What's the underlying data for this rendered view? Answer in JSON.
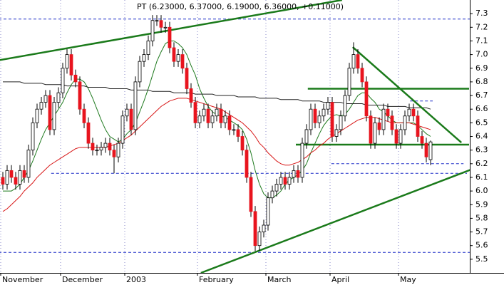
{
  "chart_data": {
    "type": "candlestick",
    "title": "PT (6.23000, 6.37000, 6.19000, 6.36000, +0.11000)",
    "categories": [
      "November",
      null,
      null,
      null,
      null,
      null,
      null,
      null,
      null,
      null,
      null,
      null,
      null,
      null,
      "December",
      null,
      null,
      null,
      null,
      null,
      null,
      null,
      null,
      null,
      null,
      null,
      null,
      null,
      null,
      "2003",
      null,
      null,
      null,
      null,
      null,
      null,
      null,
      null,
      null,
      null,
      null,
      null,
      null,
      null,
      null,
      null,
      "February",
      null,
      null,
      null,
      null,
      null,
      null,
      null,
      null,
      null,
      null,
      null,
      null,
      null,
      null,
      null,
      "March",
      null,
      null,
      null,
      null,
      null,
      null,
      null,
      null,
      null,
      null,
      null,
      null,
      null,
      null,
      "April",
      null,
      null,
      null,
      null,
      null,
      null,
      null,
      null,
      null,
      null,
      null,
      null,
      null,
      null,
      null,
      "May",
      null,
      null,
      null,
      null,
      null,
      null,
      null
    ],
    "ohlc": [
      [
        6.1,
        6.14,
        6.01,
        6.05
      ],
      [
        6.05,
        6.19,
        6.01,
        6.15
      ],
      [
        6.15,
        6.19,
        6.06,
        6.1
      ],
      [
        6.1,
        6.14,
        6.01,
        6.05
      ],
      [
        6.05,
        6.19,
        6.01,
        6.15
      ],
      [
        6.15,
        6.19,
        6.06,
        6.1
      ],
      [
        6.1,
        6.34,
        6.06,
        6.3
      ],
      [
        6.3,
        6.54,
        6.26,
        6.5
      ],
      [
        6.5,
        6.64,
        6.46,
        6.6
      ],
      [
        6.6,
        6.69,
        6.56,
        6.65
      ],
      [
        6.65,
        6.74,
        6.61,
        6.7
      ],
      [
        6.7,
        6.74,
        6.41,
        6.45
      ],
      [
        6.45,
        6.69,
        6.41,
        6.65
      ],
      [
        6.65,
        6.76,
        6.61,
        6.72
      ],
      [
        6.72,
        6.94,
        6.68,
        6.9
      ],
      [
        6.9,
        7.04,
        6.86,
        7.0
      ],
      [
        7.0,
        7.04,
        6.81,
        6.85
      ],
      [
        6.85,
        6.89,
        6.76,
        6.8
      ],
      [
        6.8,
        6.84,
        6.56,
        6.6
      ],
      [
        6.6,
        6.64,
        6.46,
        6.5
      ],
      [
        6.5,
        6.54,
        6.31,
        6.35
      ],
      [
        6.35,
        6.39,
        6.26,
        6.3
      ],
      [
        6.3,
        6.34,
        6.26,
        6.3
      ],
      [
        6.3,
        6.36,
        6.26,
        6.32
      ],
      [
        6.32,
        6.39,
        6.28,
        6.35
      ],
      [
        6.35,
        6.39,
        6.26,
        6.3
      ],
      [
        6.3,
        6.34,
        6.13,
        6.25
      ],
      [
        6.25,
        6.39,
        6.21,
        6.35
      ],
      [
        6.35,
        6.59,
        6.31,
        6.55
      ],
      [
        6.55,
        6.64,
        6.51,
        6.6
      ],
      [
        6.6,
        6.64,
        6.41,
        6.45
      ],
      [
        6.45,
        6.84,
        6.41,
        6.8
      ],
      [
        6.8,
        6.99,
        6.76,
        6.95
      ],
      [
        6.95,
        7.04,
        6.91,
        7.0
      ],
      [
        7.0,
        7.14,
        6.96,
        7.1
      ],
      [
        7.1,
        7.29,
        7.06,
        7.25
      ],
      [
        7.25,
        7.29,
        7.21,
        7.25
      ],
      [
        7.25,
        7.29,
        7.16,
        7.2
      ],
      [
        7.2,
        7.24,
        7.16,
        7.2
      ],
      [
        7.2,
        7.24,
        7.01,
        7.05
      ],
      [
        7.05,
        7.09,
        6.91,
        6.95
      ],
      [
        6.95,
        7.04,
        6.91,
        7.0
      ],
      [
        7.0,
        7.04,
        6.86,
        6.9
      ],
      [
        6.9,
        6.94,
        6.71,
        6.75
      ],
      [
        6.75,
        6.79,
        6.61,
        6.65
      ],
      [
        6.65,
        6.69,
        6.46,
        6.5
      ],
      [
        6.5,
        6.59,
        6.46,
        6.55
      ],
      [
        6.55,
        6.64,
        6.51,
        6.6
      ],
      [
        6.6,
        6.64,
        6.46,
        6.5
      ],
      [
        6.5,
        6.59,
        6.46,
        6.55
      ],
      [
        6.55,
        6.64,
        6.51,
        6.6
      ],
      [
        6.6,
        6.64,
        6.46,
        6.5
      ],
      [
        6.5,
        6.59,
        6.46,
        6.55
      ],
      [
        6.55,
        6.59,
        6.41,
        6.45
      ],
      [
        6.45,
        6.49,
        6.41,
        6.45
      ],
      [
        6.45,
        6.49,
        6.36,
        6.4
      ],
      [
        6.4,
        6.44,
        6.26,
        6.3
      ],
      [
        6.3,
        6.34,
        6.06,
        6.1
      ],
      [
        6.1,
        6.14,
        5.81,
        5.85
      ],
      [
        5.85,
        5.89,
        5.56,
        5.6
      ],
      [
        5.6,
        5.74,
        5.56,
        5.7
      ],
      [
        5.7,
        5.79,
        5.66,
        5.75
      ],
      [
        5.75,
        5.99,
        5.71,
        5.95
      ],
      [
        5.95,
        6.04,
        5.91,
        6.0
      ],
      [
        6.0,
        6.09,
        5.96,
        6.05
      ],
      [
        6.05,
        6.14,
        6.01,
        6.1
      ],
      [
        6.1,
        6.14,
        6.01,
        6.05
      ],
      [
        6.05,
        6.14,
        6.01,
        6.1
      ],
      [
        6.1,
        6.19,
        6.06,
        6.15
      ],
      [
        6.15,
        6.19,
        6.06,
        6.1
      ],
      [
        6.1,
        6.39,
        6.06,
        6.35
      ],
      [
        6.35,
        6.49,
        6.31,
        6.45
      ],
      [
        6.45,
        6.64,
        6.41,
        6.6
      ],
      [
        6.6,
        6.64,
        6.46,
        6.5
      ],
      [
        6.5,
        6.59,
        6.46,
        6.55
      ],
      [
        6.55,
        6.64,
        6.51,
        6.6
      ],
      [
        6.6,
        6.69,
        6.56,
        6.65
      ],
      [
        6.65,
        6.69,
        6.36,
        6.4
      ],
      [
        6.4,
        6.49,
        6.36,
        6.45
      ],
      [
        6.45,
        6.59,
        6.41,
        6.55
      ],
      [
        6.55,
        6.74,
        6.51,
        6.7
      ],
      [
        6.7,
        6.94,
        6.66,
        6.9
      ],
      [
        6.9,
        7.09,
        6.86,
        7.0
      ],
      [
        7.0,
        7.04,
        6.86,
        6.9
      ],
      [
        6.9,
        6.94,
        6.76,
        6.8
      ],
      [
        6.8,
        6.84,
        6.51,
        6.55
      ],
      [
        6.55,
        6.59,
        6.31,
        6.35
      ],
      [
        6.35,
        6.54,
        6.31,
        6.5
      ],
      [
        6.5,
        6.54,
        6.41,
        6.45
      ],
      [
        6.45,
        6.64,
        6.41,
        6.6
      ],
      [
        6.6,
        6.64,
        6.51,
        6.55
      ],
      [
        6.55,
        6.59,
        6.41,
        6.45
      ],
      [
        6.45,
        6.49,
        6.31,
        6.35
      ],
      [
        6.35,
        6.49,
        6.31,
        6.45
      ],
      [
        6.45,
        6.59,
        6.41,
        6.55
      ],
      [
        6.55,
        6.64,
        6.51,
        6.6
      ],
      [
        6.6,
        6.64,
        6.51,
        6.55
      ],
      [
        6.55,
        6.59,
        6.36,
        6.4
      ],
      [
        6.4,
        6.44,
        6.31,
        6.35
      ],
      [
        6.35,
        6.39,
        6.21,
        6.25
      ],
      [
        6.23,
        6.37,
        6.19,
        6.36
      ]
    ],
    "up_color": "#ffffff",
    "down_color": "#e8141e",
    "series": [
      {
        "color": "#1f7a1f",
        "values": [
          6.0,
          6.0,
          6.0,
          6.02,
          6.05,
          6.1,
          6.15,
          6.22,
          6.3,
          6.38,
          6.45,
          6.5,
          6.55,
          6.6,
          6.65,
          6.72,
          6.78,
          6.82,
          6.82,
          6.8,
          6.75,
          6.68,
          6.6,
          6.52,
          6.45,
          6.4,
          6.38,
          6.36,
          6.38,
          6.42,
          6.45,
          6.5,
          6.58,
          6.66,
          6.75,
          6.85,
          6.95,
          7.02,
          7.08,
          7.1,
          7.1,
          7.08,
          7.05,
          7.0,
          6.92,
          6.85,
          6.75,
          6.68,
          6.62,
          6.58,
          6.56,
          6.55,
          6.54,
          6.52,
          6.5,
          6.48,
          6.45,
          6.38,
          6.28,
          6.15,
          6.05,
          5.98,
          5.95,
          5.95,
          5.97,
          6.0,
          6.05,
          6.08,
          6.1,
          6.12,
          6.15,
          6.2,
          6.28,
          6.35,
          6.42,
          6.48,
          6.52,
          6.55,
          6.56,
          6.55,
          6.56,
          6.6,
          6.65,
          6.7,
          6.72,
          6.72,
          6.68,
          6.65,
          6.6,
          6.58,
          6.55,
          6.52,
          6.5,
          6.5,
          6.5,
          6.5,
          6.5,
          6.48,
          6.45,
          6.42,
          6.4
        ]
      },
      {
        "color": "#d81818",
        "values": [
          5.85,
          5.87,
          5.9,
          5.93,
          5.96,
          6.0,
          6.03,
          6.06,
          6.1,
          6.13,
          6.16,
          6.19,
          6.21,
          6.23,
          6.25,
          6.27,
          6.29,
          6.31,
          6.32,
          6.32,
          6.32,
          6.32,
          6.32,
          6.32,
          6.32,
          6.33,
          6.34,
          6.35,
          6.37,
          6.39,
          6.41,
          6.44,
          6.47,
          6.5,
          6.53,
          6.56,
          6.59,
          6.62,
          6.64,
          6.66,
          6.67,
          6.68,
          6.68,
          6.68,
          6.67,
          6.66,
          6.65,
          6.64,
          6.63,
          6.62,
          6.61,
          6.6,
          6.58,
          6.56,
          6.54,
          6.52,
          6.5,
          6.47,
          6.44,
          6.4,
          6.35,
          6.32,
          6.28,
          6.25,
          6.22,
          6.2,
          6.19,
          6.19,
          6.2,
          6.21,
          6.23,
          6.25,
          6.28,
          6.3,
          6.33,
          6.35,
          6.38,
          6.4,
          6.42,
          6.44,
          6.46,
          6.48,
          6.5,
          6.52,
          6.53,
          6.54,
          6.54,
          6.54,
          6.53,
          6.52,
          6.51,
          6.5,
          6.5,
          6.5,
          6.5,
          6.5,
          6.49,
          6.48,
          6.47,
          6.46,
          6.45
        ]
      },
      {
        "color": "#222222",
        "values": [
          6.8,
          6.8,
          6.8,
          6.8,
          6.8,
          6.79,
          6.79,
          6.79,
          6.79,
          6.79,
          6.78,
          6.78,
          6.78,
          6.78,
          6.78,
          6.77,
          6.77,
          6.77,
          6.77,
          6.77,
          6.76,
          6.76,
          6.76,
          6.76,
          6.76,
          6.75,
          6.75,
          6.75,
          6.75,
          6.75,
          6.74,
          6.74,
          6.74,
          6.74,
          6.74,
          6.73,
          6.73,
          6.73,
          6.73,
          6.73,
          6.72,
          6.72,
          6.72,
          6.72,
          6.72,
          6.71,
          6.71,
          6.71,
          6.71,
          6.71,
          6.7,
          6.7,
          6.7,
          6.7,
          6.7,
          6.69,
          6.69,
          6.69,
          6.69,
          6.69,
          6.68,
          6.68,
          6.68,
          6.68,
          6.68,
          6.67,
          6.67,
          6.67,
          6.67,
          6.67,
          6.66,
          6.66,
          6.66,
          6.66,
          6.66,
          6.65,
          6.65,
          6.65,
          6.65,
          6.65,
          6.64,
          6.64,
          6.64,
          6.64,
          6.64,
          6.63,
          6.63,
          6.63,
          6.63,
          6.63,
          6.62,
          6.62,
          6.62,
          6.62,
          6.62,
          6.61,
          6.61,
          6.61,
          6.61,
          6.61,
          6.6
        ]
      }
    ],
    "hlines": [
      {
        "value": 7.26,
        "x": [
          -1,
          110
        ],
        "color": "#1f2fc8",
        "dashed": true
      },
      {
        "value": 6.66,
        "x": [
          95.2,
          100.5
        ],
        "color": "#1f2fc8",
        "dashed": true
      },
      {
        "value": 6.13,
        "x": [
          11.3,
          108.5
        ],
        "color": "#1f2fc8",
        "dashed": true
      },
      {
        "value": 6.2,
        "x": [
          76.8,
          107.7
        ],
        "color": "#1f2fc8",
        "dashed": true
      },
      {
        "value": 5.55,
        "x": [
          -1,
          110
        ],
        "color": "#1f2fc8",
        "dashed": true
      },
      {
        "value": 6.75,
        "x": [
          71.3,
          109
        ],
        "color": "#1a7a1a",
        "dashed": false
      },
      {
        "value": 6.34,
        "x": [
          68.5,
          109
        ],
        "color": "#1a7a1a",
        "dashed": false
      }
    ],
    "trendlines": [
      {
        "x": [
          -0.7,
          79.3
        ],
        "y": [
          6.96,
          7.4
        ],
        "color": "#1a7a1a"
      },
      {
        "x": [
          46.3,
          109.7
        ],
        "y": [
          5.4,
          6.16
        ],
        "color": "#1a7a1a"
      },
      {
        "x": [
          81.8,
          107.2
        ],
        "y": [
          7.055,
          6.355
        ],
        "color": "#1a7a1a"
      }
    ],
    "ylim": [
      5.4,
      7.4
    ],
    "yticks": [
      5.5,
      5.6,
      5.7,
      5.8,
      5.9,
      {
        "value": 6,
        "label": "6.0"
      },
      6.1,
      6.2,
      6.3,
      6.4,
      6.5,
      6.6,
      6.7,
      6.8,
      6.9,
      {
        "value": 7,
        "label": "7.0"
      },
      7.1,
      7.2,
      7.3
    ],
    "grid": true
  }
}
